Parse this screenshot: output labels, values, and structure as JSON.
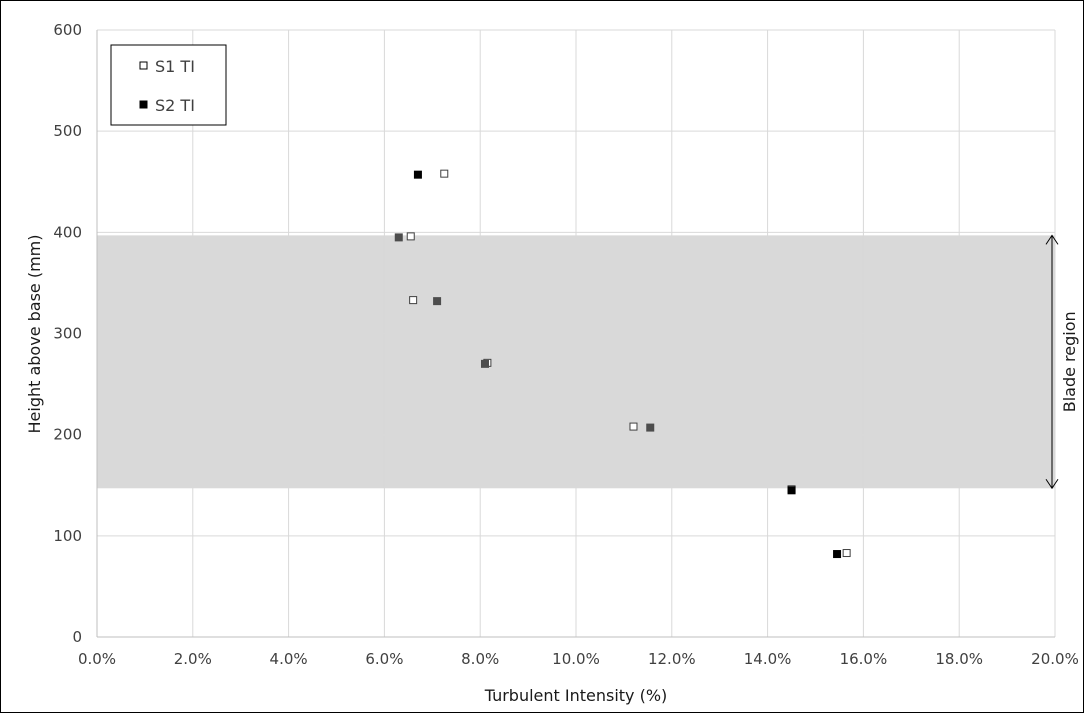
{
  "chart_data": {
    "type": "scatter",
    "xlabel": "Turbulent Intensity (%)",
    "ylabel": "Height above base (mm)",
    "xlim": [
      0,
      20
    ],
    "ylim": [
      0,
      600
    ],
    "x_ticks": [
      "0.0%",
      "2.0%",
      "4.0%",
      "6.0%",
      "8.0%",
      "10.0%",
      "12.0%",
      "14.0%",
      "16.0%",
      "18.0%",
      "20.0%"
    ],
    "y_ticks": [
      "0",
      "100",
      "200",
      "300",
      "400",
      "500",
      "600"
    ],
    "grid": true,
    "legend": "top-left",
    "shaded_region": {
      "label": "Blade region",
      "y_from": 147,
      "y_to": 397,
      "color": "#d9d9d9"
    },
    "series": [
      {
        "name": "S1 TI",
        "marker": "hollow-square",
        "x": [
          15.65,
          14.5,
          11.2,
          8.15,
          6.6,
          6.55,
          7.25
        ],
        "y": [
          83,
          146,
          208,
          271,
          333,
          396,
          458
        ]
      },
      {
        "name": "S2 TI",
        "marker": "filled-square",
        "x": [
          15.45,
          14.5,
          11.55,
          8.1,
          7.1,
          6.3,
          6.7
        ],
        "y": [
          82,
          145,
          207,
          270,
          332,
          395,
          457
        ]
      }
    ],
    "colors": {
      "gridline": "#d9d9d9",
      "shade": "#d9d9d9",
      "marker": "#000000"
    }
  }
}
